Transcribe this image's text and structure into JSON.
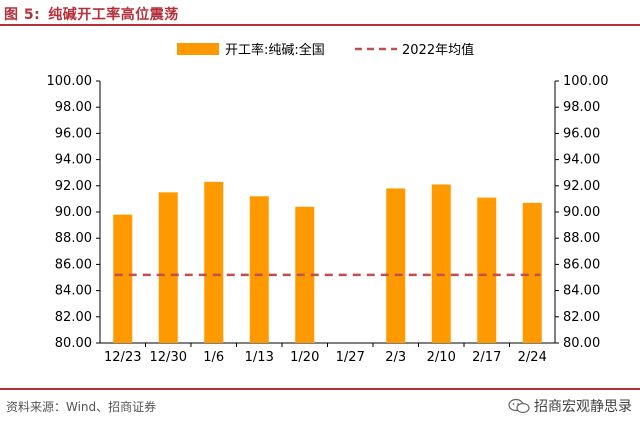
{
  "figure": {
    "label": "图 5:",
    "title": "纯碱开工率高位震荡",
    "source": "资料来源：Wind、招商证券",
    "watermark": "招商宏观静思录"
  },
  "colors": {
    "bar": "#FF9900",
    "average_line": "#C0504D",
    "header_rule": "#b5303a"
  },
  "chart_data": {
    "type": "bar",
    "categories": [
      "12/23",
      "12/30",
      "1/6",
      "1/13",
      "1/20",
      "1/27",
      "2/3",
      "2/10",
      "2/17",
      "2/24"
    ],
    "series": [
      {
        "name": "开工率:纯碱:全国",
        "type": "bar",
        "values": [
          89.8,
          91.5,
          92.3,
          91.2,
          90.4,
          null,
          91.8,
          92.1,
          91.1,
          90.7
        ]
      },
      {
        "name": "2022年均值",
        "type": "line",
        "style": "dashed",
        "value": 85.2
      }
    ],
    "ylim": [
      80,
      100
    ],
    "y_ticks": [
      "80.00",
      "82.00",
      "84.00",
      "86.00",
      "88.00",
      "90.00",
      "92.00",
      "94.00",
      "96.00",
      "98.00",
      "100.00"
    ],
    "y2_ticks": [
      "80.00",
      "82.00",
      "84.00",
      "86.00",
      "88.00",
      "90.00",
      "92.00",
      "94.00",
      "96.00",
      "98.00",
      "100.00"
    ],
    "grid": false,
    "legend": "top"
  }
}
